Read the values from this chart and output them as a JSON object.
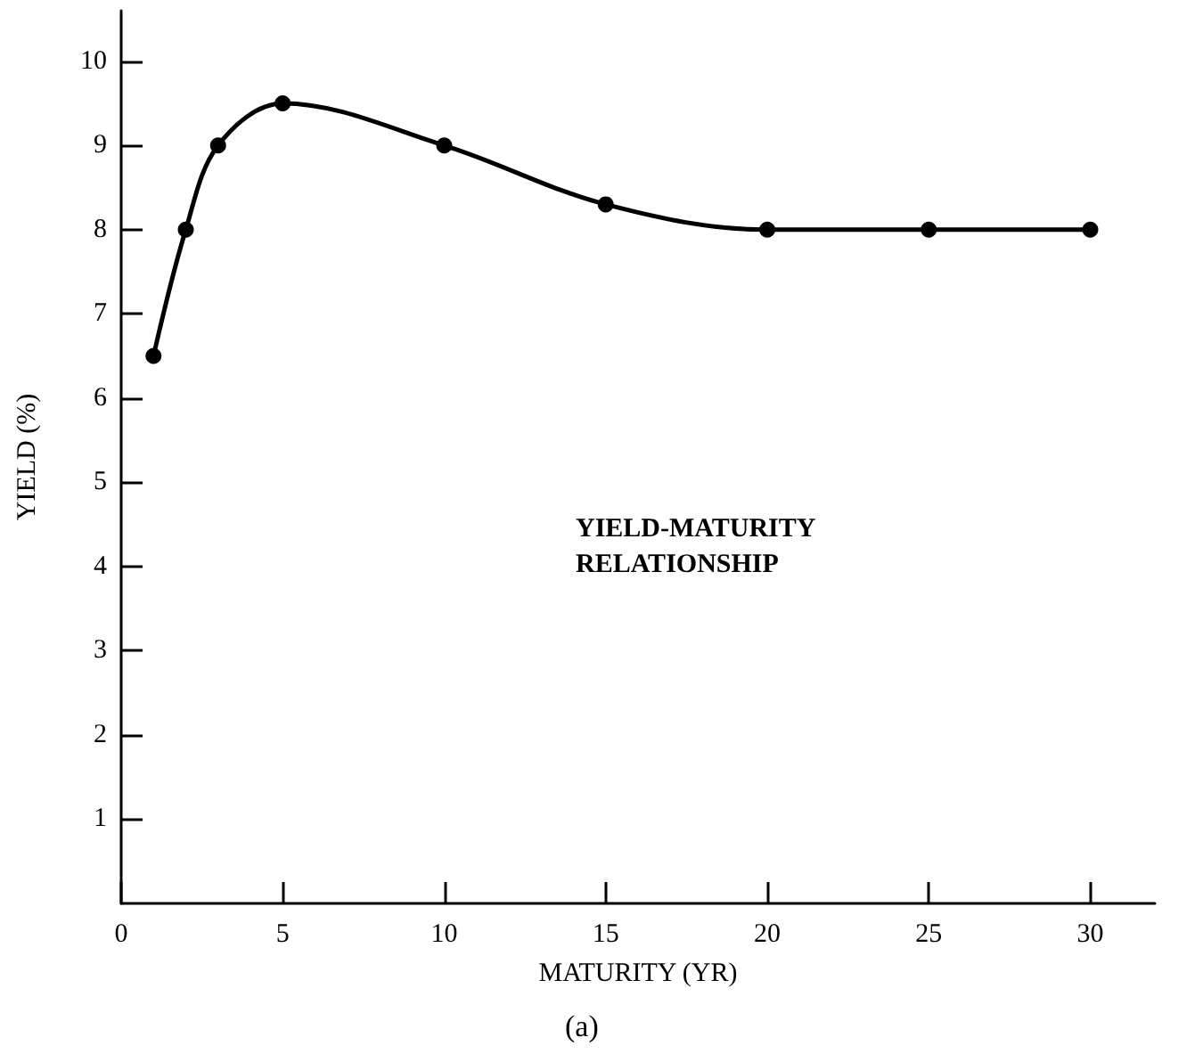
{
  "chart_data": {
    "type": "line",
    "xlabel": "MATURITY (YR)",
    "ylabel": "YIELD (%)",
    "annotations": [
      "YIELD-MATURITY\nRELATIONSHIP",
      "(a)"
    ],
    "x": [
      1,
      2,
      3,
      5,
      10,
      15,
      20,
      25,
      30
    ],
    "series": [
      {
        "color": "#000000",
        "values": [
          6.5,
          8,
          9,
          9.5,
          9,
          8.3,
          8.0,
          8.0,
          8.0
        ]
      }
    ],
    "xlim": [
      0,
      32
    ],
    "xticks": [
      0,
      5,
      10,
      15,
      20,
      25,
      30
    ],
    "ylim": [
      0,
      10.6
    ],
    "yticks": [
      1,
      2,
      3,
      4,
      5,
      6,
      7,
      8,
      9,
      10
    ],
    "grid": false,
    "marker": "circle",
    "line_style": "solid"
  }
}
